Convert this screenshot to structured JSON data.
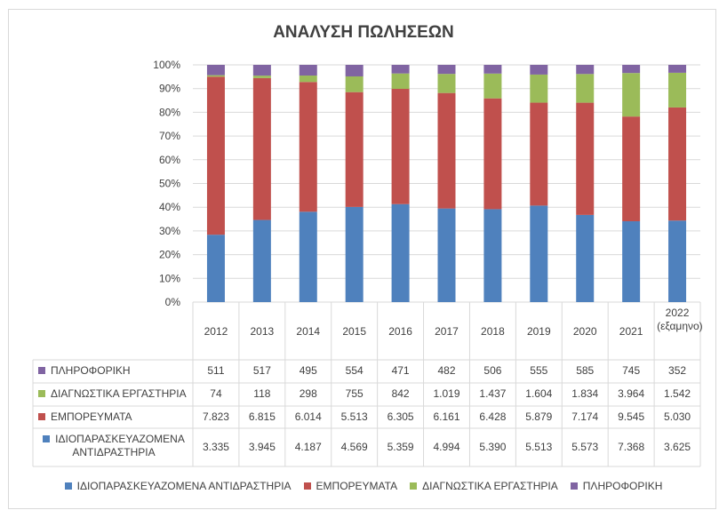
{
  "chart_data": {
    "type": "bar",
    "stacked": "percent",
    "title": "ΑΝΑΛΥΣΗ ΠΩΛΗΣΕΩΝ",
    "categories": [
      "2012",
      "2013",
      "2014",
      "2015",
      "2016",
      "2017",
      "2018",
      "2019",
      "2020",
      "2021",
      "2022 (εξαμηνο)"
    ],
    "y_ticks": [
      "0%",
      "10%",
      "20%",
      "30%",
      "40%",
      "50%",
      "60%",
      "70%",
      "80%",
      "90%",
      "100%"
    ],
    "ylim": [
      0,
      1
    ],
    "series": [
      {
        "name": "ΙΔΙΟΠΑΡΑΣΚΕΥΑΖΟΜΕΝΑ ΑΝΤΙΔΡΑΣΤΗΡΙΑ",
        "color": "#4f81bd",
        "values": [
          3335,
          3945,
          4187,
          4569,
          5359,
          4994,
          5390,
          5513,
          5573,
          7368,
          3625
        ],
        "labels": [
          "3.335",
          "3.945",
          "4.187",
          "4.569",
          "5.359",
          "4.994",
          "5.390",
          "5.513",
          "5.573",
          "7.368",
          "3.625"
        ]
      },
      {
        "name": "ΕΜΠΟΡΕΥΜΑΤΑ",
        "color": "#c0504d",
        "values": [
          7823,
          6815,
          6014,
          5513,
          6305,
          6161,
          6428,
          5879,
          7174,
          9545,
          5030
        ],
        "labels": [
          "7.823",
          "6.815",
          "6.014",
          "5.513",
          "6.305",
          "6.161",
          "6.428",
          "5.879",
          "7.174",
          "9.545",
          "5.030"
        ]
      },
      {
        "name": "ΔΙΑΓΝΩΣΤΙΚΑ ΕΡΓΑΣΤΗΡΙΑ",
        "color": "#9bbb59",
        "values": [
          74,
          118,
          298,
          755,
          842,
          1019,
          1437,
          1604,
          1834,
          3964,
          1542
        ],
        "labels": [
          "74",
          "118",
          "298",
          "755",
          "842",
          "1.019",
          "1.437",
          "1.604",
          "1.834",
          "3.964",
          "1.542"
        ]
      },
      {
        "name": "ΠΛΗΡΟΦΟΡΙΚΗ",
        "color": "#8064a2",
        "values": [
          511,
          517,
          495,
          554,
          471,
          482,
          506,
          555,
          585,
          745,
          352
        ],
        "labels": [
          "511",
          "517",
          "495",
          "554",
          "471",
          "482",
          "506",
          "555",
          "585",
          "745",
          "352"
        ]
      }
    ],
    "grid": true,
    "legend": "bottom",
    "data_table": true,
    "table_row_order": [
      3,
      2,
      1,
      0
    ],
    "table_row_labels": [
      "ΠΛΗΡΟΦΟΡΙΚΗ",
      "ΔΙΑΓΝΩΣΤΙΚΑ ΕΡΓΑΣΤΗΡΙΑ",
      "ΕΜΠΟΡΕΥΜΑΤΑ",
      "ΙΔΙΟΠΑΡΑΣΚΕΥΑΖΟΜΕΝΑ ΑΝΤΙΔΡΑΣΤΗΡΙΑ"
    ]
  }
}
